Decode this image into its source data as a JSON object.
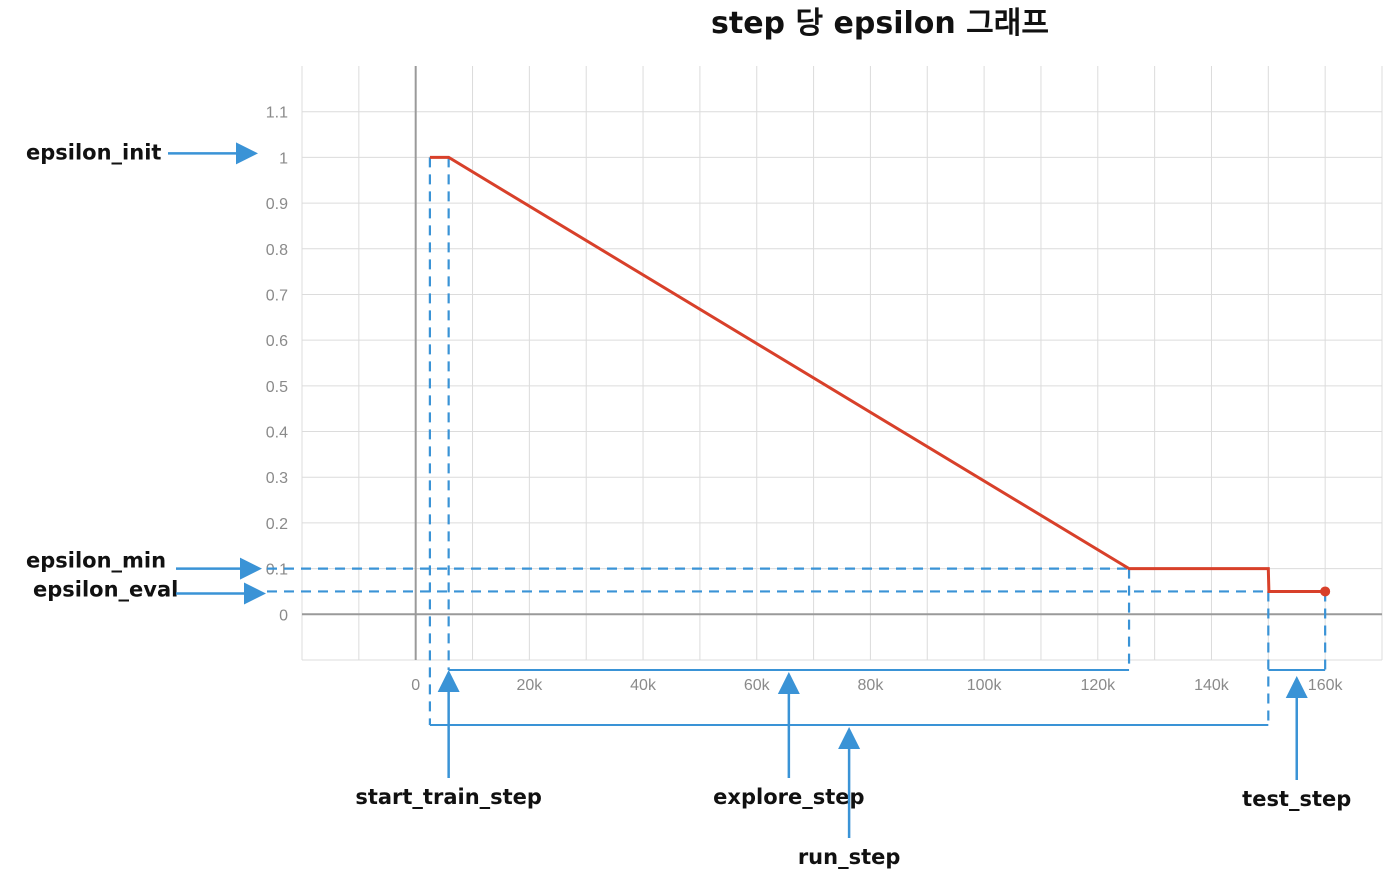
{
  "chart_data": {
    "type": "line",
    "title": "step 당 epsilon 그래프",
    "xlabel": "",
    "ylabel": "",
    "xlim": [
      -20000,
      170000
    ],
    "ylim": [
      -0.1,
      1.2
    ],
    "x_ticks": [
      0,
      20000,
      40000,
      60000,
      80000,
      100000,
      120000,
      140000,
      160000
    ],
    "x_tick_labels": [
      "0",
      "20k",
      "40k",
      "60k",
      "80k",
      "100k",
      "120k",
      "140k",
      "160k"
    ],
    "y_ticks": [
      0,
      0.1,
      0.2,
      0.3,
      0.4,
      0.5,
      0.6,
      0.7,
      0.8,
      0.9,
      1,
      1.1
    ],
    "y_tick_labels": [
      "0",
      "0.1",
      "0.2",
      "0.3",
      "0.4",
      "0.5",
      "0.6",
      "0.7",
      "0.8",
      "0.9",
      "1",
      "1.1"
    ],
    "grid": true,
    "series": [
      {
        "color": "#d8402a",
        "x": [
          2500,
          5800,
          125500,
          150000,
          150100,
          160000
        ],
        "y": [
          1.0,
          1.0,
          0.1,
          0.1,
          0.05,
          0.05
        ],
        "end_marker": true
      }
    ],
    "annotations": {
      "epsilon_init": {
        "label": "epsilon_init",
        "value": 1.0
      },
      "epsilon_min": {
        "label": "epsilon_min",
        "value": 0.1
      },
      "epsilon_eval": {
        "label": "epsilon_eval",
        "value": 0.05
      },
      "start_train_step": {
        "label": "start_train_step",
        "from": 2500,
        "to": 5800
      },
      "explore_step": {
        "label": "explore_step",
        "from": 5800,
        "to": 125500
      },
      "run_step": {
        "label": "run_step",
        "from": 2500,
        "to": 150000
      },
      "test_step": {
        "label": "test_step",
        "from": 150000,
        "to": 160000
      }
    }
  }
}
